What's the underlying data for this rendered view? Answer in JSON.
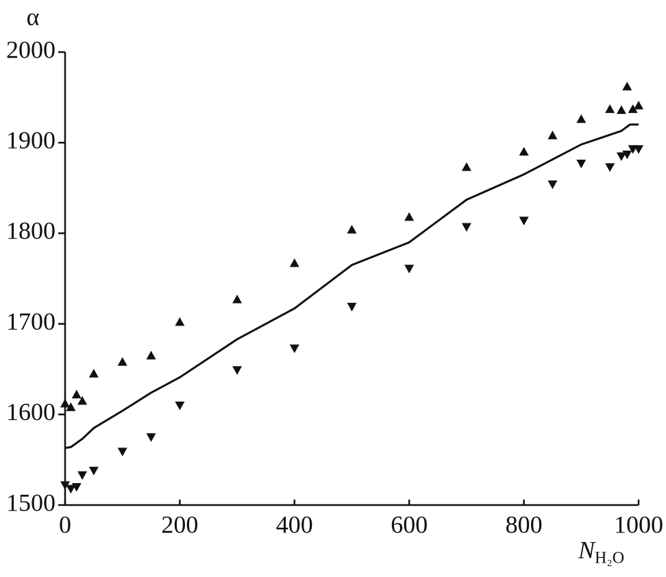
{
  "chart_data": {
    "type": "scatter",
    "ylabel": "α",
    "xlabel": "N",
    "xlabel_subscript": "H₂O",
    "xlim": [
      0,
      1000
    ],
    "xticks": [
      0,
      200,
      400,
      600,
      800,
      1000
    ],
    "ylim": [
      1500,
      2000
    ],
    "yticks": [
      1500,
      1600,
      1700,
      1800,
      1900,
      2000
    ],
    "grid": false,
    "series": [
      {
        "style": "triangle-up",
        "color": "#111111",
        "x": [
          0,
          10,
          20,
          30,
          50,
          100,
          150,
          200,
          300,
          400,
          500,
          600,
          700,
          800,
          850,
          900,
          950,
          970,
          980,
          990,
          1000
        ],
        "values": [
          1612,
          1608,
          1622,
          1615,
          1645,
          1658,
          1665,
          1702,
          1727,
          1767,
          1804,
          1818,
          1873,
          1890,
          1908,
          1926,
          1937,
          1936,
          1962,
          1937,
          1941
        ]
      },
      {
        "style": "triangle-down",
        "color": "#111111",
        "x": [
          0,
          10,
          20,
          30,
          50,
          100,
          150,
          200,
          300,
          400,
          500,
          600,
          700,
          800,
          850,
          900,
          950,
          970,
          980,
          990,
          1000
        ],
        "values": [
          1522,
          1518,
          1520,
          1533,
          1538,
          1559,
          1575,
          1610,
          1649,
          1673,
          1719,
          1761,
          1807,
          1814,
          1854,
          1877,
          1873,
          1885,
          1887,
          1893,
          1893
        ]
      },
      {
        "style": "line",
        "color": "#111111",
        "x": [
          0,
          10,
          30,
          50,
          100,
          150,
          200,
          300,
          400,
          500,
          600,
          700,
          800,
          900,
          970,
          985,
          1000
        ],
        "values": [
          1563,
          1564,
          1573,
          1585,
          1604,
          1624,
          1641,
          1683,
          1717,
          1765,
          1790,
          1837,
          1865,
          1898,
          1913,
          1920,
          1920
        ]
      }
    ]
  }
}
